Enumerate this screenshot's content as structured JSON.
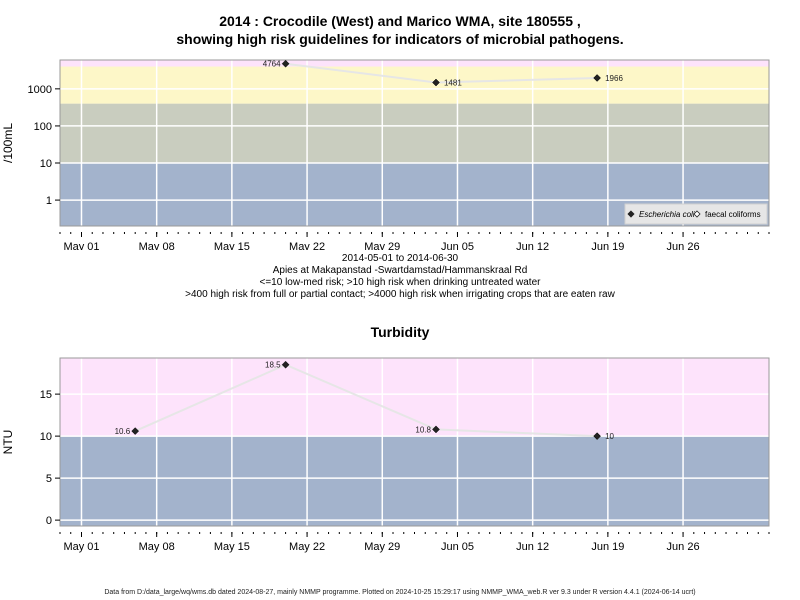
{
  "chart_data": [
    {
      "type": "scatter",
      "title_line1": "2014 : Crocodile (West) and Marico WMA, site 180555 ,",
      "title_line2": "showing high risk guidelines for indicators of microbial pathogens.",
      "ylabel": "/100mL",
      "yscale": "log",
      "ylim": [
        0.2,
        6000
      ],
      "yticks": [
        {
          "value": 1,
          "label": "1"
        },
        {
          "value": 10,
          "label": "10"
        },
        {
          "value": 100,
          "label": "100"
        },
        {
          "value": 1000,
          "label": "1000"
        }
      ],
      "bands": [
        {
          "from": 0.2,
          "to": 10,
          "color": "#a3b3cc"
        },
        {
          "from": 10,
          "to": 400,
          "color": "#c9cdbf"
        },
        {
          "from": 400,
          "to": 4000,
          "color": "#fdf7c8"
        },
        {
          "from": 4000,
          "to": 6000,
          "color": "#fde3fb"
        }
      ],
      "series": [
        {
          "name": "Escherichia coli",
          "points": [
            {
              "date": "2014-05-20",
              "value": 4764,
              "label": "4764"
            },
            {
              "date": "2014-06-03",
              "value": 1481,
              "label": "1481"
            },
            {
              "date": "2014-06-18",
              "value": 1966,
              "label": "1966"
            }
          ]
        }
      ],
      "legend": {
        "position": "bottom-right",
        "items": [
          {
            "label": "Escherichia coli",
            "italic": true,
            "marker": "filled-diamond"
          },
          {
            "label": "faecal coliforms",
            "italic": false,
            "marker": "open-diamond"
          }
        ]
      },
      "caption_lines": [
        "2014-05-01 to 2014-06-30",
        "Apies at Makapanstad -Swartdamstad/Hammanskraal Rd",
        "<=10 low-med risk; >10 high risk when drinking untreated water",
        ">400 high risk from full or partial contact; >4000 high risk when irrigating crops that are eaten raw"
      ]
    },
    {
      "type": "scatter",
      "title": "Turbidity",
      "ylabel": "NTU",
      "yscale": "linear",
      "ylim": [
        -0.7,
        19.3
      ],
      "yticks": [
        {
          "value": 0,
          "label": "0"
        },
        {
          "value": 5,
          "label": "5"
        },
        {
          "value": 10,
          "label": "10"
        },
        {
          "value": 15,
          "label": "15"
        }
      ],
      "bands": [
        {
          "from": -0.7,
          "to": 10,
          "color": "#a3b3cc"
        },
        {
          "from": 10,
          "to": 19.3,
          "color": "#fde3fb"
        }
      ],
      "series": [
        {
          "name": "Turbidity",
          "points": [
            {
              "date": "2014-05-06",
              "value": 10.6,
              "label": "10.6"
            },
            {
              "date": "2014-05-20",
              "value": 18.5,
              "label": "18.5"
            },
            {
              "date": "2014-06-03",
              "value": 10.8,
              "label": "10.8"
            },
            {
              "date": "2014-06-18",
              "value": 10,
              "label": "10"
            }
          ]
        }
      ]
    }
  ],
  "x_axis": {
    "range": [
      "2014-04-29",
      "2014-07-04"
    ],
    "ticks": [
      {
        "date": "2014-05-01",
        "label": "May 01"
      },
      {
        "date": "2014-05-08",
        "label": "May 08"
      },
      {
        "date": "2014-05-15",
        "label": "May 15"
      },
      {
        "date": "2014-05-22",
        "label": "May 22"
      },
      {
        "date": "2014-05-29",
        "label": "May 29"
      },
      {
        "date": "2014-06-05",
        "label": "Jun 05"
      },
      {
        "date": "2014-06-12",
        "label": "Jun 12"
      },
      {
        "date": "2014-06-19",
        "label": "Jun 19"
      },
      {
        "date": "2014-06-26",
        "label": "Jun 26"
      }
    ]
  },
  "footer": "Data from D:/data_large/wq/wms.db dated 2024-08-27, mainly NMMP programme. Plotted on 2024-10-25 15:29:17 using NMMP_WMA_web.R ver 9.3 under R version 4.4.1 (2024-06-14 ucrt)"
}
